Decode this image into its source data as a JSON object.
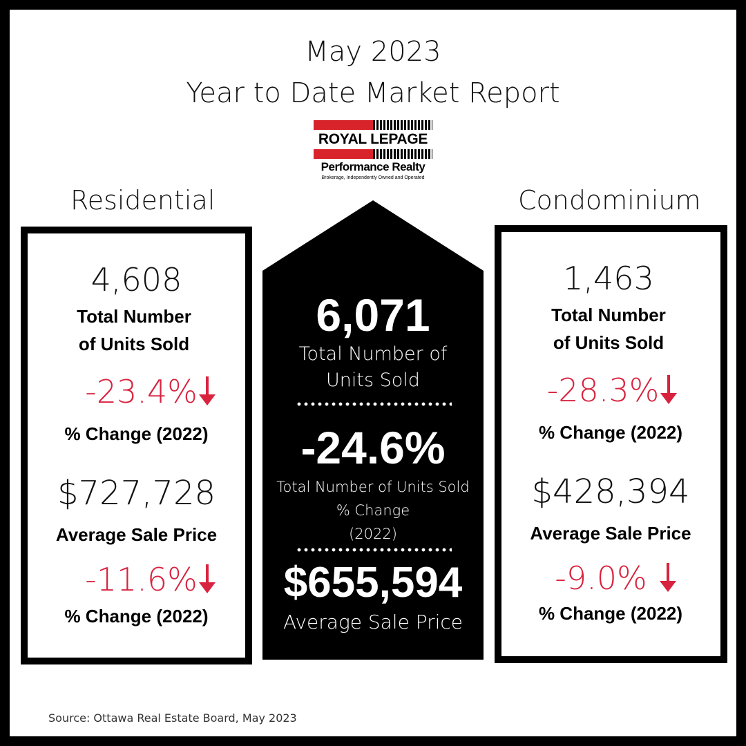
{
  "header": {
    "title_line1": "May 2023",
    "title_line2": "Year to Date Market Report"
  },
  "logo": {
    "brand": "ROYAL LEPAGE",
    "name": "Performance Realty",
    "tagline": "Brokerage, Independently Owned and Operated"
  },
  "residential": {
    "heading": "Residential",
    "units_sold": "4,608",
    "units_label_line1": "Total Number",
    "units_label_line2": "of Units Sold",
    "units_change": "-23.4%",
    "units_change_label": "% Change (2022)",
    "avg_price": "$727,728",
    "avg_price_label": "Average Sale Price",
    "price_change": "-11.6%",
    "price_change_label": "% Change (2022)"
  },
  "center": {
    "units_sold": "6,071",
    "units_label_line1": "Total Number of",
    "units_label_line2": "Units Sold",
    "units_change": "-24.6%",
    "change_label_line1": "Total Number of Units Sold",
    "change_label_line2": "% Change",
    "change_label_line3": "(2022)",
    "avg_price": "$655,594",
    "avg_price_label": "Average Sale Price"
  },
  "condominium": {
    "heading": "Condominium",
    "units_sold": "1,463",
    "units_label_line1": "Total Number",
    "units_label_line2": "of Units Sold",
    "units_change": "-28.3%",
    "units_change_label": "% Change (2022)",
    "avg_price": "$428,394",
    "avg_price_label": "Average Sale Price",
    "price_change": "-9.0%",
    "price_change_label": "% Change (2022)"
  },
  "footer": {
    "source": "Source: Ottawa Real Estate Board, May 2023"
  },
  "colors": {
    "accent_red": "#d8233f",
    "logo_red": "#d8232a",
    "black": "#000000"
  },
  "icons": {
    "down_arrow": "arrow-down-icon"
  }
}
